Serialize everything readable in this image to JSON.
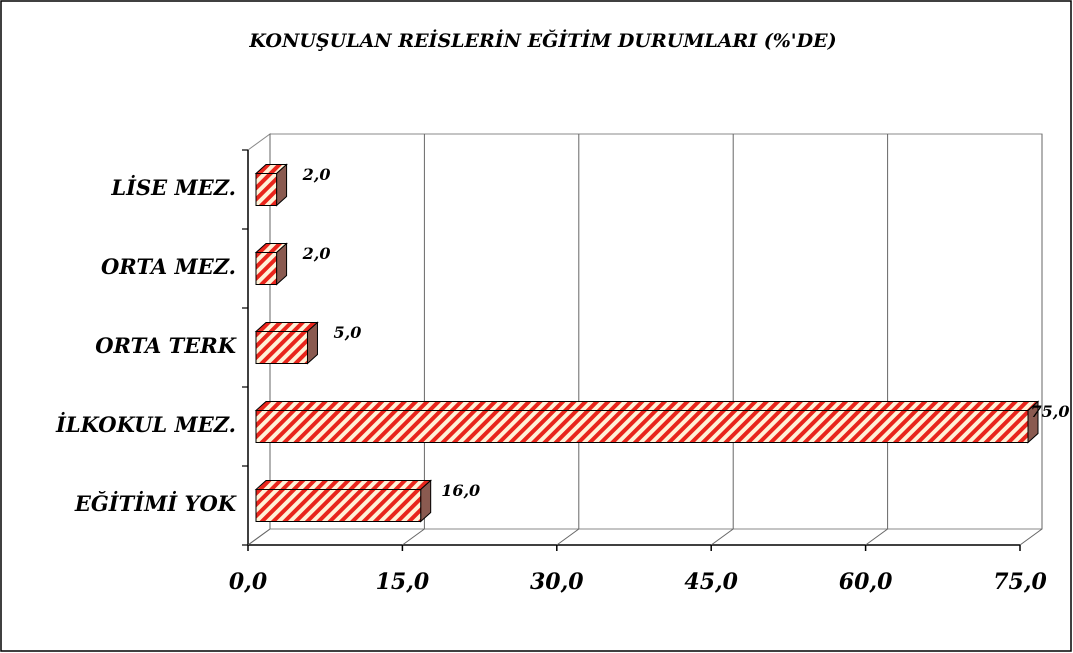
{
  "chart_data": {
    "type": "bar",
    "orientation": "horizontal",
    "title": "KONUŞULAN REİSLERİN EĞİTİM DURUMLARI (%'DE)",
    "categories": [
      "EĞİTİMİ YOK",
      "İLKOKUL MEZ.",
      "ORTA TERK",
      "ORTA MEZ.",
      "LİSE MEZ."
    ],
    "values": [
      16.0,
      75.0,
      5.0,
      2.0,
      2.0
    ],
    "value_labels": [
      "16,0",
      "75,0",
      "5,0",
      "2,0",
      "2,0"
    ],
    "color": "#e8251c",
    "xlim": [
      0,
      75
    ],
    "xticks": [
      {
        "value": 0,
        "label": "0,0"
      },
      {
        "value": 15,
        "label": "15,0"
      },
      {
        "value": 30,
        "label": "30,0"
      },
      {
        "value": 45,
        "label": "45,0"
      },
      {
        "value": 60,
        "label": "60,0"
      },
      {
        "value": 75,
        "label": "75,0"
      }
    ],
    "grid": true
  }
}
